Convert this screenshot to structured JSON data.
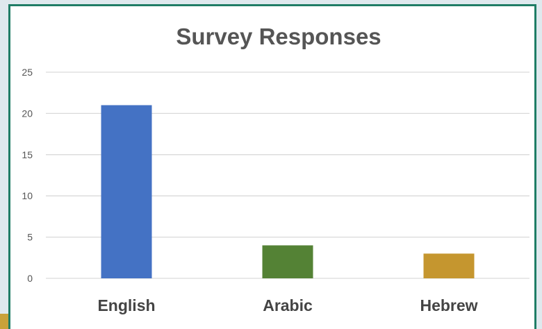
{
  "chart_data": {
    "type": "bar",
    "title": "Survey Responses",
    "categories": [
      "English",
      "Arabic",
      "Hebrew"
    ],
    "values": [
      21,
      4,
      3
    ],
    "colors": [
      "#4472c4",
      "#548235",
      "#c5962f"
    ],
    "ylim": [
      0,
      25
    ],
    "yticks": [
      "0",
      "5",
      "10",
      "15",
      "20",
      "25"
    ],
    "grid": true,
    "legend": "none"
  }
}
